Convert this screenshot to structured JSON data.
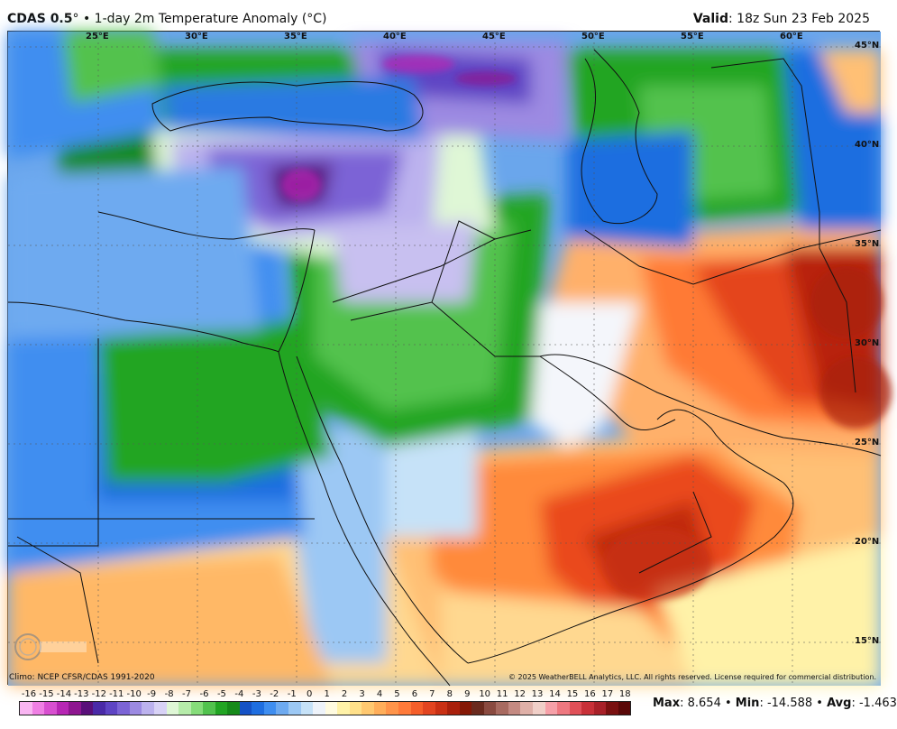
{
  "header": {
    "model": "CDAS 0.5",
    "degree": "°",
    "bullet": " • ",
    "product": "1-day 2m Temperature Anomaly (°C)",
    "valid_label": "Valid",
    "valid_value": ": 18z Sun 23 Feb 2025"
  },
  "map": {
    "lon_labels": [
      "25°E",
      "30°E",
      "35°E",
      "40°E",
      "45°E",
      "50°E",
      "55°E",
      "60°E"
    ],
    "lat_labels": [
      "45°N",
      "40°N",
      "35°N",
      "30°N",
      "25°N",
      "20°N",
      "15°N"
    ],
    "colors": {
      "cold_deep": "#9a1e96",
      "cold_purple": "#6a5fd0",
      "cold_lavender": "#b8b4ec",
      "green_dark": "#1f9f1f",
      "green": "#52c24e",
      "green_light": "#a8e6a0",
      "blue_dark": "#1f5fd8",
      "blue": "#4a8ee8",
      "blue_light": "#9cc8f2",
      "neutral": "#f4f6fb",
      "yellow": "#fff4a8",
      "orange_light": "#ffc078",
      "orange": "#ff8a3a",
      "red": "#e8461a",
      "red_dark": "#b01e08"
    }
  },
  "credits": {
    "climo": "Climo: NCEP CFSR/CDAS 1991-2020",
    "copyright": "© 2025 WeatherBELL Analytics, LLC. All rights reserved. License required for commercial distribution.",
    "logo_text": "WeatherBELL"
  },
  "legend": {
    "ticks": [
      "-16",
      "-15",
      "-14",
      "-13",
      "-12",
      "-11",
      "-10",
      "-9",
      "-8",
      "-7",
      "-6",
      "-5",
      "-4",
      "-3",
      "-2",
      "-1",
      "0",
      "1",
      "2",
      "3",
      "4",
      "5",
      "6",
      "7",
      "8",
      "9",
      "10",
      "11",
      "12",
      "13",
      "14",
      "15",
      "16",
      "17",
      "18"
    ],
    "colors": [
      "#f9b5f2",
      "#ef7fe4",
      "#d84fd0",
      "#b726b4",
      "#8e1690",
      "#5a0f7a",
      "#4a2aa8",
      "#5e44c4",
      "#7c64d6",
      "#9c8ae2",
      "#bcb2ee",
      "#d8d2f6",
      "#dff7d6",
      "#b6ecaa",
      "#86dc7a",
      "#52c24e",
      "#22a524",
      "#168a1a",
      "#1552c6",
      "#1f6ee0",
      "#3f8ef0",
      "#6eaaf0",
      "#9cc8f4",
      "#c6e2f8",
      "#eef3fa",
      "#fffbe0",
      "#fff2a8",
      "#ffe08a",
      "#ffc870",
      "#ffae5a",
      "#ff944a",
      "#ff7a3a",
      "#f55e2a",
      "#e24420",
      "#c93014",
      "#a9200c",
      "#851806",
      "#6a2a1e",
      "#8a4a40",
      "#a86a60",
      "#c48a82",
      "#dfb0a8",
      "#f0cfc8",
      "#f6a0a8",
      "#ee7880",
      "#e05058",
      "#c83038",
      "#a82028",
      "#7a1010",
      "#5a0808"
    ]
  },
  "stats": {
    "max_label": "Max",
    "max_value": ": 8.654",
    "min_label": "Min",
    "min_value": ": -14.588",
    "avg_label": "Avg",
    "avg_value": ": -1.463",
    "sep": " • "
  }
}
